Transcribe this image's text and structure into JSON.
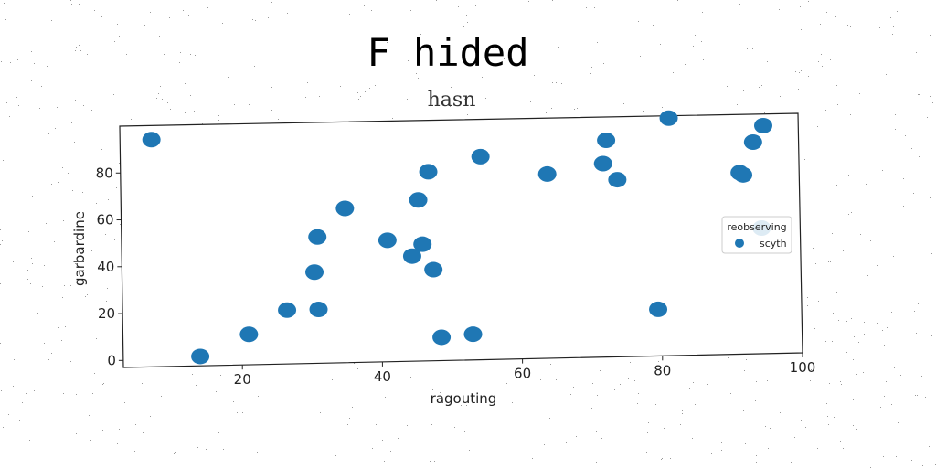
{
  "chart_data": {
    "type": "scatter",
    "suptitle": "F hided",
    "title": "hasn",
    "xlabel": "ragouting",
    "ylabel": "garbardine",
    "xlim": [
      3,
      100
    ],
    "ylim": [
      -3,
      100
    ],
    "xticks": [
      20,
      40,
      60,
      80,
      100
    ],
    "yticks": [
      0,
      20,
      40,
      60,
      80
    ],
    "grid": false,
    "legend": {
      "title": "reobserving",
      "placement": "right"
    },
    "color": "#1f77b4",
    "series": [
      {
        "name": "scyth",
        "points": [
          [
            7.5,
            94
          ],
          [
            14,
            1
          ],
          [
            21,
            10
          ],
          [
            26.5,
            20
          ],
          [
            30.5,
            36
          ],
          [
            31,
            51
          ],
          [
            31,
            20
          ],
          [
            35,
            63
          ],
          [
            41,
            49
          ],
          [
            44.5,
            42
          ],
          [
            45.5,
            66
          ],
          [
            46,
            47
          ],
          [
            47,
            78
          ],
          [
            47.5,
            36
          ],
          [
            48.5,
            7
          ],
          [
            53,
            8
          ],
          [
            54.5,
            84
          ],
          [
            64,
            76
          ],
          [
            72,
            80
          ],
          [
            72.5,
            90
          ],
          [
            74,
            73
          ],
          [
            79.5,
            17
          ],
          [
            81.5,
            99
          ],
          [
            91.5,
            75
          ],
          [
            92,
            74
          ],
          [
            93.5,
            88
          ],
          [
            95,
            95
          ],
          [
            94.5,
            51
          ]
        ]
      }
    ]
  }
}
